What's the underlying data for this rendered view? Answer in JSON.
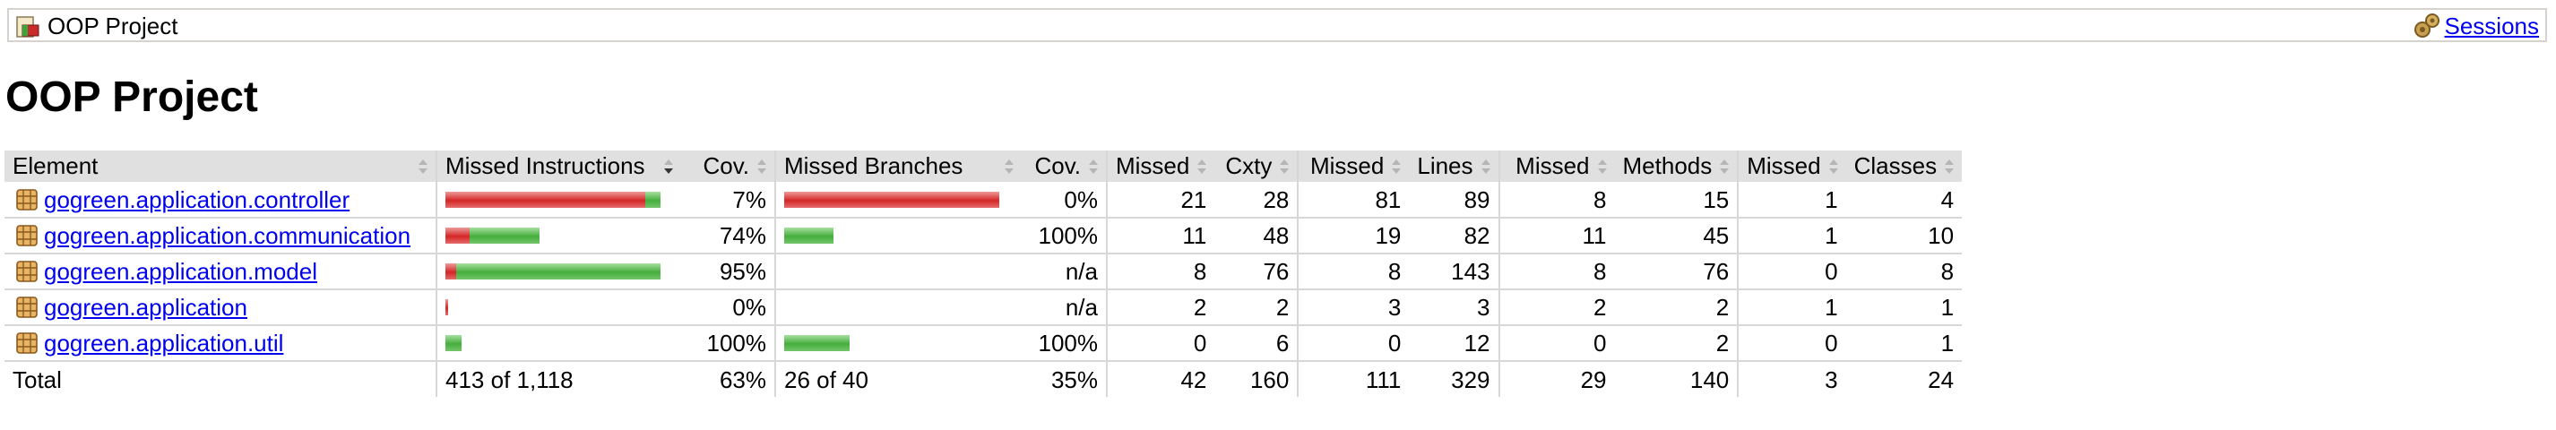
{
  "breadcrumb": {
    "title": "OOP Project",
    "sessions_label": "Sessions"
  },
  "page_title": "OOP Project",
  "table": {
    "headers": {
      "element": "Element",
      "missed_instructions": "Missed Instructions",
      "cov_instructions": "Cov.",
      "missed_branches": "Missed Branches",
      "cov_branches": "Cov.",
      "missed_cxty": "Missed",
      "cxty": "Cxty",
      "missed_lines": "Missed",
      "lines": "Lines",
      "missed_methods": "Missed",
      "methods": "Methods",
      "missed_classes": "Missed",
      "classes": "Classes"
    },
    "rows": [
      {
        "name": "gogreen.application.controller",
        "instr_missed": 0.93,
        "instr_covered": 0.07,
        "instr_cov": "7%",
        "branch_missed": 1.0,
        "branch_covered": 0.0,
        "branch_cov": "0%",
        "missed_cxty": "21",
        "cxty": "28",
        "missed_lines": "81",
        "lines": "89",
        "missed_methods": "8",
        "methods": "15",
        "missed_classes": "1",
        "classes": "4"
      },
      {
        "name": "gogreen.application.communication",
        "instr_missed": 0.26,
        "instr_covered": 0.74,
        "instr_cov": "74%",
        "branch_missed": 0.0,
        "branch_covered": 1.0,
        "branch_cov": "100%",
        "missed_cxty": "11",
        "cxty": "48",
        "missed_lines": "19",
        "lines": "82",
        "missed_methods": "11",
        "methods": "45",
        "missed_classes": "1",
        "classes": "10"
      },
      {
        "name": "gogreen.application.model",
        "instr_missed": 0.05,
        "instr_covered": 0.95,
        "instr_cov": "95%",
        "branch_missed": 0.0,
        "branch_covered": 0.0,
        "branch_cov": "n/a",
        "missed_cxty": "8",
        "cxty": "76",
        "missed_lines": "8",
        "lines": "143",
        "missed_methods": "8",
        "methods": "76",
        "missed_classes": "0",
        "classes": "8"
      },
      {
        "name": "gogreen.application",
        "instr_missed": 1.0,
        "instr_covered": 0.0,
        "instr_cov": "0%",
        "branch_missed": 0.0,
        "branch_covered": 0.0,
        "branch_cov": "n/a",
        "missed_cxty": "2",
        "cxty": "2",
        "missed_lines": "3",
        "lines": "3",
        "missed_methods": "2",
        "methods": "2",
        "missed_classes": "1",
        "classes": "1"
      },
      {
        "name": "gogreen.application.util",
        "instr_missed": 0.0,
        "instr_covered": 1.0,
        "instr_cov": "100%",
        "branch_missed": 0.0,
        "branch_covered": 1.0,
        "branch_cov": "100%",
        "missed_cxty": "0",
        "cxty": "6",
        "missed_lines": "0",
        "lines": "12",
        "missed_methods": "0",
        "methods": "2",
        "missed_classes": "0",
        "classes": "1"
      }
    ],
    "total": {
      "label": "Total",
      "instructions": "413 of 1,118",
      "instr_cov": "63%",
      "branches": "26 of 40",
      "branch_cov": "35%",
      "missed_cxty": "42",
      "cxty": "160",
      "missed_lines": "111",
      "lines": "329",
      "missed_methods": "29",
      "methods": "140",
      "missed_classes": "3",
      "classes": "24"
    }
  },
  "colors": {
    "link": "#0000ee",
    "missed_bar": "#d42626",
    "covered_bar": "#45ae3c",
    "header_bg": "#e0e0e0"
  }
}
